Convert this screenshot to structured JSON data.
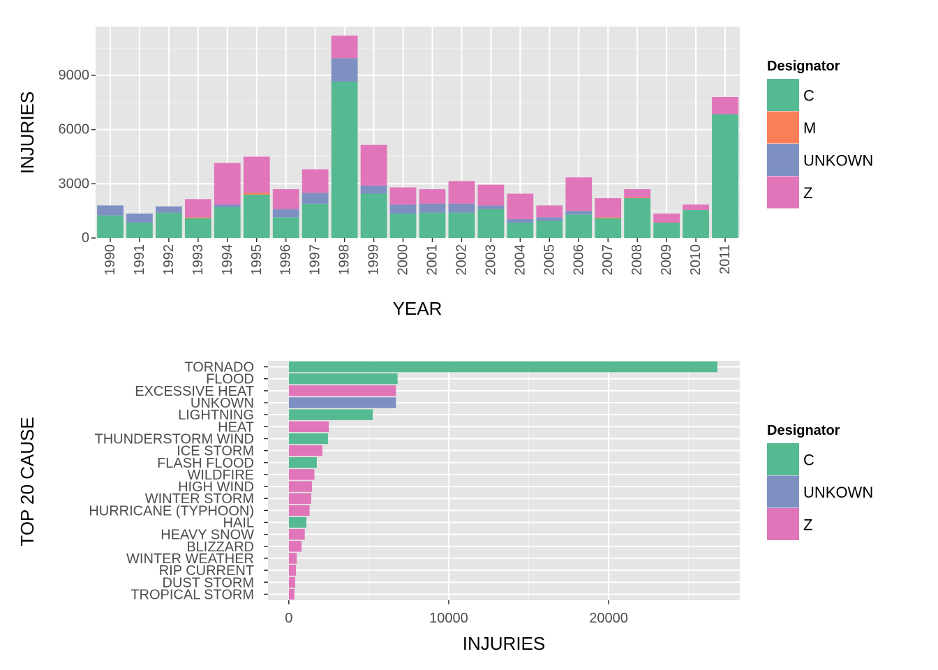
{
  "colors": {
    "C": "#55BA91",
    "M": "#FB7F56",
    "UNKOWN": "#7E90C2",
    "Z": "#E075BA",
    "panel": "#E5E5E5",
    "grid_major": "#FFFFFF",
    "grid_minor": "#F2F2F2"
  },
  "chart_data": [
    {
      "type": "bar",
      "stacked": true,
      "orientation": "vertical",
      "xlabel": "YEAR",
      "ylabel": "INJURIES",
      "ylim": [
        0,
        11700
      ],
      "yticks": [
        "0",
        "3000",
        "6000",
        "9000"
      ],
      "categories": [
        "1990",
        "1991",
        "1992",
        "1993",
        "1994",
        "1995",
        "1996",
        "1997",
        "1998",
        "1999",
        "2000",
        "2001",
        "2002",
        "2003",
        "2004",
        "2005",
        "2006",
        "2007",
        "2008",
        "2009",
        "2010",
        "2011"
      ],
      "series": [
        {
          "name": "C",
          "values": [
            1250,
            850,
            1400,
            1100,
            1700,
            2400,
            1150,
            1900,
            8650,
            2450,
            1350,
            1400,
            1400,
            1600,
            850,
            950,
            1300,
            1100,
            2200,
            850,
            1550,
            6850
          ]
        },
        {
          "name": "M",
          "values": [
            0,
            0,
            0,
            50,
            0,
            100,
            0,
            0,
            0,
            0,
            0,
            0,
            0,
            0,
            0,
            0,
            0,
            50,
            50,
            0,
            0,
            0
          ]
        },
        {
          "name": "UNKOWN",
          "values": [
            550,
            500,
            350,
            0,
            150,
            0,
            450,
            600,
            1300,
            450,
            500,
            500,
            500,
            200,
            200,
            200,
            200,
            0,
            0,
            0,
            0,
            0
          ]
        },
        {
          "name": "Z",
          "values": [
            0,
            0,
            0,
            1000,
            2300,
            2000,
            1100,
            1300,
            1250,
            2250,
            950,
            800,
            1250,
            1150,
            1400,
            650,
            1850,
            1050,
            450,
            500,
            300,
            950
          ]
        }
      ],
      "legend": {
        "title": "Designator",
        "position": "right",
        "entries": [
          "C",
          "M",
          "UNKOWN",
          "Z"
        ]
      }
    },
    {
      "type": "bar",
      "orientation": "horizontal",
      "xlabel": "INJURIES",
      "ylabel": "TOP 20 CAUSE",
      "xlim": [
        -1300,
        28200
      ],
      "xticks": [
        "0",
        "10000",
        "20000"
      ],
      "categories": [
        "TORNADO",
        "FLOOD",
        "EXCESSIVE HEAT",
        "UNKOWN",
        "LIGHTNING",
        "HEAT",
        "THUNDERSTORM WIND",
        "ICE STORM",
        "FLASH FLOOD",
        "WILDFIRE",
        "HIGH WIND",
        "WINTER STORM",
        "HURRICANE (TYPHOON)",
        "HAIL",
        "HEAVY SNOW",
        "BLIZZARD",
        "WINTER WEATHER",
        "RIP CURRENT",
        "DUST STORM",
        "TROPICAL STORM"
      ],
      "values": [
        26800,
        6800,
        6700,
        6700,
        5250,
        2500,
        2450,
        2100,
        1750,
        1600,
        1450,
        1400,
        1300,
        1100,
        1000,
        800,
        500,
        450,
        400,
        350
      ],
      "designators": [
        "C",
        "C",
        "Z",
        "UNKOWN",
        "C",
        "Z",
        "C",
        "Z",
        "C",
        "Z",
        "Z",
        "Z",
        "Z",
        "C",
        "Z",
        "Z",
        "Z",
        "Z",
        "Z",
        "Z"
      ],
      "legend": {
        "title": "Designator",
        "position": "right",
        "entries": [
          "C",
          "UNKOWN",
          "Z"
        ]
      }
    }
  ]
}
